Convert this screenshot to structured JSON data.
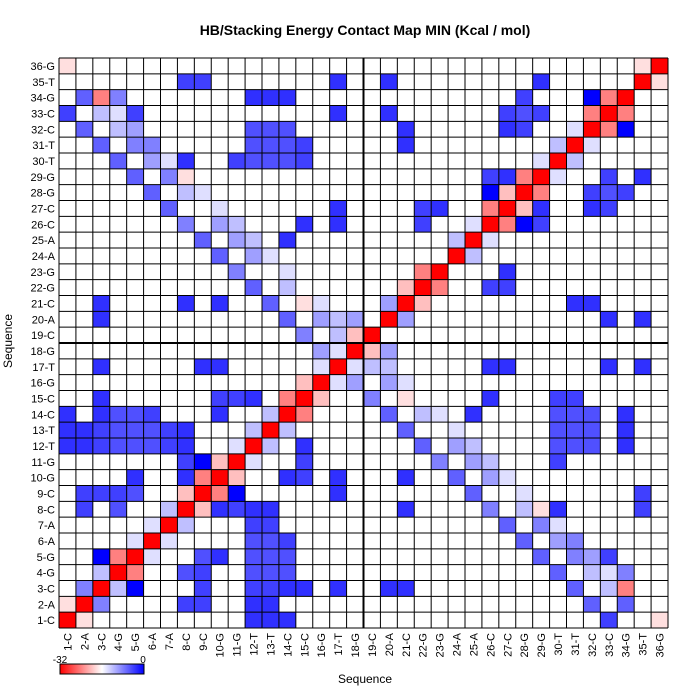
{
  "chart_data": {
    "type": "heatmap",
    "title": "HB/Stacking Energy Contact Map MIN (Kcal / mol)",
    "xlabel": "Sequence",
    "ylabel": "Sequence",
    "x_labels": [
      "1-C",
      "2-A",
      "3-C",
      "4-G",
      "5-G",
      "6-A",
      "7-A",
      "8-C",
      "9-C",
      "10-G",
      "11-G",
      "12-T",
      "13-T",
      "14-C",
      "15-C",
      "16-G",
      "17-T",
      "18-G",
      "19-C",
      "20-A",
      "21-C",
      "22-G",
      "23-G",
      "24-A",
      "25-A",
      "26-C",
      "27-C",
      "28-G",
      "29-G",
      "30-T",
      "31-T",
      "32-C",
      "33-C",
      "34-G",
      "35-T",
      "36-G"
    ],
    "y_labels_top_to_bottom": [
      "36-G",
      "35-T",
      "34-G",
      "33-C",
      "32-C",
      "31-T",
      "30-T",
      "29-G",
      "28-G",
      "27-C",
      "26-C",
      "25-A",
      "24-A",
      "23-G",
      "22-G",
      "21-C",
      "20-A",
      "19-C",
      "18-G",
      "17-T",
      "16-G",
      "15-C",
      "14-C",
      "13-T",
      "12-T",
      "11-G",
      "10-G",
      "9-C",
      "8-C",
      "7-A",
      "6-A",
      "5-G",
      "4-G",
      "3-C",
      "2-A",
      "1-C"
    ],
    "divider_after_index": 18,
    "colorbar": {
      "min": -32,
      "max": 0,
      "min_label": "-32",
      "max_label": "0",
      "colors": [
        "#ff0000",
        "#ffffff",
        "#0000ff"
      ]
    },
    "cells": [
      {
        "i": 1,
        "j": 1,
        "v": -32
      },
      {
        "i": 2,
        "j": 2,
        "v": -32
      },
      {
        "i": 3,
        "j": 3,
        "v": -32
      },
      {
        "i": 4,
        "j": 4,
        "v": -32
      },
      {
        "i": 5,
        "j": 5,
        "v": -32
      },
      {
        "i": 6,
        "j": 6,
        "v": -32
      },
      {
        "i": 7,
        "j": 7,
        "v": -32
      },
      {
        "i": 8,
        "j": 8,
        "v": -32
      },
      {
        "i": 9,
        "j": 9,
        "v": -32
      },
      {
        "i": 10,
        "j": 10,
        "v": -32
      },
      {
        "i": 11,
        "j": 11,
        "v": -32
      },
      {
        "i": 12,
        "j": 12,
        "v": -32
      },
      {
        "i": 13,
        "j": 13,
        "v": -32
      },
      {
        "i": 14,
        "j": 14,
        "v": -32
      },
      {
        "i": 15,
        "j": 15,
        "v": -32
      },
      {
        "i": 16,
        "j": 16,
        "v": -32
      },
      {
        "i": 17,
        "j": 17,
        "v": -32
      },
      {
        "i": 18,
        "j": 18,
        "v": -32
      },
      {
        "i": 19,
        "j": 19,
        "v": -32
      },
      {
        "i": 20,
        "j": 20,
        "v": -32
      },
      {
        "i": 21,
        "j": 21,
        "v": -32
      },
      {
        "i": 22,
        "j": 22,
        "v": -32
      },
      {
        "i": 23,
        "j": 23,
        "v": -32
      },
      {
        "i": 24,
        "j": 24,
        "v": -32
      },
      {
        "i": 25,
        "j": 25,
        "v": -32
      },
      {
        "i": 26,
        "j": 26,
        "v": -32
      },
      {
        "i": 27,
        "j": 27,
        "v": -32
      },
      {
        "i": 28,
        "j": 28,
        "v": -32
      },
      {
        "i": 29,
        "j": 29,
        "v": -32
      },
      {
        "i": 30,
        "j": 30,
        "v": -32
      },
      {
        "i": 31,
        "j": 31,
        "v": -32
      },
      {
        "i": 32,
        "j": 32,
        "v": -32
      },
      {
        "i": 33,
        "j": 33,
        "v": -32
      },
      {
        "i": 34,
        "j": 34,
        "v": -32
      },
      {
        "i": 35,
        "j": 35,
        "v": -32
      },
      {
        "i": 36,
        "j": 36,
        "v": -32
      },
      {
        "i": 1,
        "j": 2,
        "v": -18
      },
      {
        "i": 2,
        "j": 3,
        "v": -8
      },
      {
        "i": 3,
        "j": 4,
        "v": -12
      },
      {
        "i": 4,
        "j": 5,
        "v": -24
      },
      {
        "i": 5,
        "j": 6,
        "v": -14
      },
      {
        "i": 6,
        "j": 7,
        "v": -14
      },
      {
        "i": 7,
        "j": 8,
        "v": -12
      },
      {
        "i": 8,
        "j": 9,
        "v": -20
      },
      {
        "i": 9,
        "j": 10,
        "v": -24
      },
      {
        "i": 10,
        "j": 11,
        "v": -20
      },
      {
        "i": 11,
        "j": 12,
        "v": -14
      },
      {
        "i": 12,
        "j": 13,
        "v": -12
      },
      {
        "i": 13,
        "j": 14,
        "v": -12
      },
      {
        "i": 14,
        "j": 15,
        "v": -24
      },
      {
        "i": 15,
        "j": 16,
        "v": -20
      },
      {
        "i": 16,
        "j": 17,
        "v": -14
      },
      {
        "i": 17,
        "j": 18,
        "v": -14
      },
      {
        "i": 18,
        "j": 19,
        "v": -20
      },
      {
        "i": 19,
        "j": 20,
        "v": -16
      },
      {
        "i": 20,
        "j": 21,
        "v": -10
      },
      {
        "i": 21,
        "j": 22,
        "v": -20
      },
      {
        "i": 22,
        "j": 23,
        "v": -24
      },
      {
        "i": 23,
        "j": 24,
        "v": -16
      },
      {
        "i": 24,
        "j": 25,
        "v": -12
      },
      {
        "i": 25,
        "j": 26,
        "v": -14
      },
      {
        "i": 26,
        "j": 27,
        "v": -24
      },
      {
        "i": 27,
        "j": 28,
        "v": -20
      },
      {
        "i": 28,
        "j": 29,
        "v": -24
      },
      {
        "i": 29,
        "j": 30,
        "v": -14
      },
      {
        "i": 30,
        "j": 31,
        "v": -12
      },
      {
        "i": 31,
        "j": 32,
        "v": -14
      },
      {
        "i": 32,
        "j": 33,
        "v": -24
      },
      {
        "i": 33,
        "j": 34,
        "v": -24
      },
      {
        "i": 34,
        "j": 35,
        "v": -16
      },
      {
        "i": 35,
        "j": 36,
        "v": -18
      },
      {
        "i": 1,
        "j": 36,
        "v": -18
      },
      {
        "i": 2,
        "j": 35,
        "v": -16
      },
      {
        "i": 3,
        "j": 34,
        "v": -24
      },
      {
        "i": 3,
        "j": 33,
        "v": -12
      },
      {
        "i": 4,
        "j": 33,
        "v": -14
      },
      {
        "i": 4,
        "j": 32,
        "v": -12
      },
      {
        "i": 5,
        "j": 32,
        "v": -10
      },
      {
        "i": 5,
        "j": 31,
        "v": -8
      },
      {
        "i": 6,
        "j": 31,
        "v": -8
      },
      {
        "i": 6,
        "j": 30,
        "v": -10
      },
      {
        "i": 7,
        "j": 30,
        "v": -14
      },
      {
        "i": 7,
        "j": 29,
        "v": -8
      },
      {
        "i": 8,
        "j": 29,
        "v": -18
      },
      {
        "i": 8,
        "j": 28,
        "v": -12
      },
      {
        "i": 9,
        "j": 28,
        "v": -14
      },
      {
        "i": 9,
        "j": 27,
        "v": -16
      },
      {
        "i": 10,
        "j": 27,
        "v": -14
      },
      {
        "i": 10,
        "j": 26,
        "v": -10
      },
      {
        "i": 11,
        "j": 26,
        "v": -12
      },
      {
        "i": 11,
        "j": 25,
        "v": -10
      },
      {
        "i": 12,
        "j": 25,
        "v": -12
      },
      {
        "i": 12,
        "j": 24,
        "v": -10
      },
      {
        "i": 13,
        "j": 24,
        "v": -14
      },
      {
        "i": 13,
        "j": 23,
        "v": -16
      },
      {
        "i": 14,
        "j": 23,
        "v": -14
      },
      {
        "i": 14,
        "j": 22,
        "v": -12
      },
      {
        "i": 15,
        "j": 22,
        "v": -16
      },
      {
        "i": 15,
        "j": 21,
        "v": -18
      },
      {
        "i": 16,
        "j": 21,
        "v": -14
      },
      {
        "i": 16,
        "j": 20,
        "v": -10
      },
      {
        "i": 17,
        "j": 20,
        "v": -12
      },
      {
        "i": 17,
        "j": 19,
        "v": -12
      },
      {
        "i": 18,
        "j": 20,
        "v": -10
      },
      {
        "i": 16,
        "j": 18,
        "v": -10
      },
      {
        "i": 15,
        "j": 19,
        "v": -8
      },
      {
        "i": 14,
        "j": 20,
        "v": -6
      },
      {
        "i": 13,
        "j": 21,
        "v": -6
      },
      {
        "i": 12,
        "j": 22,
        "v": -6
      },
      {
        "i": 11,
        "j": 23,
        "v": -8
      },
      {
        "i": 10,
        "j": 24,
        "v": -6
      },
      {
        "i": 9,
        "j": 25,
        "v": -6
      },
      {
        "i": 8,
        "j": 26,
        "v": -8
      },
      {
        "i": 7,
        "j": 27,
        "v": -6
      },
      {
        "i": 6,
        "j": 28,
        "v": -6
      },
      {
        "i": 5,
        "j": 29,
        "v": -6
      },
      {
        "i": 4,
        "j": 30,
        "v": -6
      },
      {
        "i": 3,
        "j": 31,
        "v": -6
      },
      {
        "i": 2,
        "j": 32,
        "v": -6
      },
      {
        "i": 1,
        "j": 33,
        "v": -4
      },
      {
        "i": 2,
        "j": 34,
        "v": -6
      },
      {
        "i": 4,
        "j": 34,
        "v": -8
      },
      {
        "i": 5,
        "j": 33,
        "v": -4
      },
      {
        "i": 3,
        "j": 5,
        "v": 0
      },
      {
        "i": 9,
        "j": 11,
        "v": 0
      },
      {
        "i": 26,
        "j": 28,
        "v": 0
      },
      {
        "i": 32,
        "j": 34,
        "v": 0
      },
      {
        "i": 8,
        "j": 10,
        "v": -3
      },
      {
        "i": 8,
        "j": 11,
        "v": -4
      },
      {
        "i": 27,
        "j": 29,
        "v": -3
      },
      {
        "i": 26,
        "j": 29,
        "v": -4
      },
      {
        "i": 4,
        "j": 8,
        "v": -5
      },
      {
        "i": 4,
        "j": 9,
        "v": -4
      },
      {
        "i": 5,
        "j": 9,
        "v": -5
      },
      {
        "i": 5,
        "j": 10,
        "v": -3
      },
      {
        "i": 3,
        "j": 9,
        "v": -4
      },
      {
        "i": 29,
        "j": 33,
        "v": -4
      },
      {
        "i": 28,
        "j": 32,
        "v": -4
      },
      {
        "i": 28,
        "j": 33,
        "v": -5
      },
      {
        "i": 27,
        "j": 33,
        "v": -4
      },
      {
        "i": 28,
        "j": 34,
        "v": -4
      },
      {
        "i": 3,
        "j": 12,
        "v": -4
      },
      {
        "i": 3,
        "j": 13,
        "v": -4
      },
      {
        "i": 4,
        "j": 12,
        "v": -5
      },
      {
        "i": 4,
        "j": 13,
        "v": -5
      },
      {
        "i": 4,
        "j": 14,
        "v": -5
      },
      {
        "i": 5,
        "j": 12,
        "v": -5
      },
      {
        "i": 5,
        "j": 13,
        "v": -5
      },
      {
        "i": 5,
        "j": 14,
        "v": -5
      },
      {
        "i": 6,
        "j": 12,
        "v": -5
      },
      {
        "i": 6,
        "j": 13,
        "v": -5
      },
      {
        "i": 6,
        "j": 14,
        "v": -4
      },
      {
        "i": 7,
        "j": 12,
        "v": -4
      },
      {
        "i": 7,
        "j": 13,
        "v": -4
      },
      {
        "i": 12,
        "j": 30,
        "v": -5
      },
      {
        "i": 12,
        "j": 31,
        "v": -5
      },
      {
        "i": 12,
        "j": 32,
        "v": -5
      },
      {
        "i": 13,
        "j": 30,
        "v": -5
      },
      {
        "i": 13,
        "j": 31,
        "v": -5
      },
      {
        "i": 13,
        "j": 32,
        "v": -5
      },
      {
        "i": 14,
        "j": 30,
        "v": -5
      },
      {
        "i": 14,
        "j": 31,
        "v": -5
      },
      {
        "i": 14,
        "j": 32,
        "v": -5
      },
      {
        "i": 15,
        "j": 30,
        "v": -4
      },
      {
        "i": 15,
        "j": 31,
        "v": -4
      },
      {
        "i": 11,
        "j": 30,
        "v": -4
      },
      {
        "i": 1,
        "j": 12,
        "v": -3
      },
      {
        "i": 1,
        "j": 13,
        "v": -3
      },
      {
        "i": 1,
        "j": 14,
        "v": -3
      },
      {
        "i": 2,
        "j": 12,
        "v": -3
      },
      {
        "i": 2,
        "j": 13,
        "v": -3
      },
      {
        "i": 10,
        "j": 15,
        "v": -4
      },
      {
        "i": 11,
        "j": 15,
        "v": -4
      },
      {
        "i": 12,
        "j": 15,
        "v": -3
      },
      {
        "i": 22,
        "j": 27,
        "v": -4
      },
      {
        "i": 22,
        "j": 26,
        "v": -4
      },
      {
        "i": 23,
        "j": 27,
        "v": -3
      },
      {
        "i": 8,
        "j": 30,
        "v": -3
      },
      {
        "i": 8,
        "j": 35,
        "v": -4
      },
      {
        "i": 9,
        "j": 35,
        "v": -4
      },
      {
        "i": 2,
        "j": 8,
        "v": -4
      },
      {
        "i": 2,
        "j": 9,
        "v": -4
      },
      {
        "i": 13,
        "j": 8,
        "v": -3
      },
      {
        "i": 12,
        "j": 8,
        "v": -3
      },
      {
        "i": 14,
        "j": 10,
        "v": -3
      },
      {
        "i": 21,
        "j": 8,
        "v": -3
      },
      {
        "i": 21,
        "j": 10,
        "v": -3
      },
      {
        "i": 15,
        "j": 3,
        "v": -3
      },
      {
        "i": 14,
        "j": 3,
        "v": -3
      },
      {
        "i": 13,
        "j": 3,
        "v": -3
      },
      {
        "i": 12,
        "j": 3,
        "v": -3
      },
      {
        "i": 21,
        "j": 3,
        "v": -3
      },
      {
        "i": 22,
        "j": 27,
        "v": -4
      },
      {
        "i": 21,
        "j": 31,
        "v": -3
      },
      {
        "i": 21,
        "j": 32,
        "v": -3
      },
      {
        "i": 20,
        "j": 33,
        "v": -3
      },
      {
        "i": 12,
        "j": 34,
        "v": -3
      },
      {
        "i": 13,
        "j": 34,
        "v": -3
      },
      {
        "i": 14,
        "j": 34,
        "v": -3
      },
      {
        "i": 26,
        "j": 17,
        "v": -3
      },
      {
        "i": 27,
        "j": 17,
        "v": -3
      },
      {
        "i": 10,
        "j": 17,
        "v": -3
      },
      {
        "i": 9,
        "j": 17,
        "v": -3
      },
      {
        "i": 3,
        "j": 17,
        "v": -3
      },
      {
        "i": 3,
        "j": 20,
        "v": -3
      },
      {
        "i": 25,
        "j": 14,
        "v": -3
      },
      {
        "i": 26,
        "j": 15,
        "v": -3
      },
      {
        "i": 33,
        "j": 17,
        "v": -3
      },
      {
        "i": 35,
        "j": 17,
        "v": -3
      },
      {
        "i": 35,
        "j": 20,
        "v": -3
      },
      {
        "i": 29,
        "j": 35,
        "v": -3
      },
      {
        "i": 27,
        "j": 32,
        "v": -3
      }
    ]
  }
}
